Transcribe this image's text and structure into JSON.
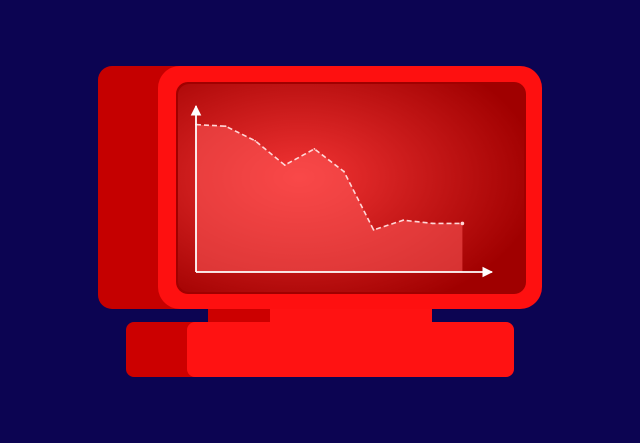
{
  "illustration": {
    "background_color": "#0c0452",
    "colors": {
      "monitor_side": "#c50000",
      "monitor_front": "#fe1010",
      "screen_edge": "#a00000",
      "screen_center": "#f23434",
      "area_fill": "#ff5a5a",
      "base_front": "#ff1212",
      "base_side": "#cc0000",
      "line": "#ffd8d8",
      "axis": "#ffffff"
    },
    "icons": [
      "computer-monitor-icon",
      "line-chart-icon"
    ]
  },
  "chart_data": {
    "type": "area",
    "x": [
      1,
      2,
      3,
      4,
      5,
      6,
      7,
      8,
      9,
      10
    ],
    "values": [
      91,
      90,
      81,
      66,
      76,
      62,
      26,
      32,
      30,
      30
    ],
    "ylim": [
      0,
      100
    ],
    "xlim": [
      1,
      11
    ],
    "grid": false,
    "legend": "none",
    "title": "",
    "xlabel": "",
    "ylabel": ""
  }
}
